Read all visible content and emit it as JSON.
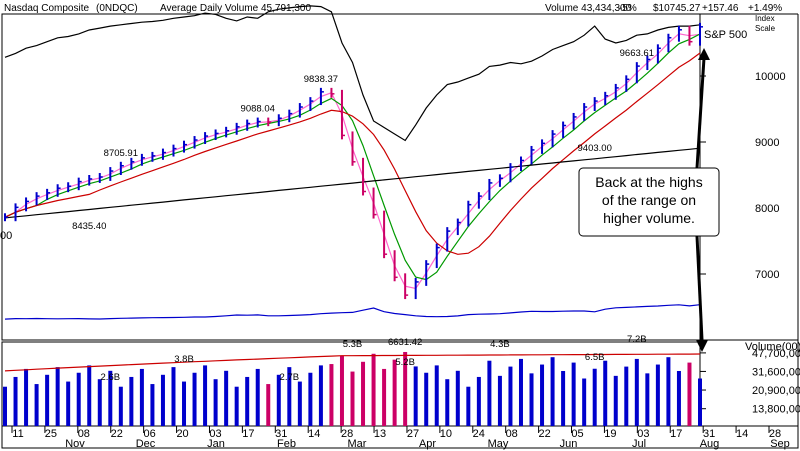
{
  "header": {
    "index_name": "Nasdaq Composite",
    "symbol": "(0NDQC)",
    "avg_volume": "Average Daily Volume 45,791,300",
    "volume": "Volume 43,434,300",
    "volume_change": "-5%",
    "price": "$10745.27",
    "change": "+157.46",
    "change_pct": "+1.49%",
    "index_label": "Index",
    "scale_label": "Scale"
  },
  "colors": {
    "up": "#0000cc",
    "down": "#cc0066",
    "ma10": "#ff66cc",
    "ma21": "#009900",
    "ma50": "#cc0000",
    "ma200": "#000000",
    "rs_line": "#0000cc",
    "sp500": "#000000",
    "volume_avg": "#cc0000",
    "red_text": "#cc0000",
    "blue_text": "#0000cc"
  },
  "chart_data": {
    "type": "line",
    "price_ticks": [
      "10000",
      "9000",
      "8000",
      "7000"
    ],
    "price_tick_values": [
      10000,
      9000,
      8000,
      7000
    ],
    "cut_label": "00",
    "volume_label": "Volume(00)",
    "volume_ticks": [
      "47,700,000",
      "31,600,000",
      "20,900,000",
      "13,800,000"
    ],
    "volume_tick_values": [
      47700000,
      31600000,
      20900000,
      13800000
    ],
    "x_ticks": [
      "11",
      "25",
      "08",
      "22",
      "06",
      "20",
      "03",
      "17",
      "31",
      "14",
      "28",
      "13",
      "27",
      "10",
      "24",
      "08",
      "22",
      "05",
      "19",
      "03",
      "17",
      "31",
      "14",
      "28"
    ],
    "month_labels": [
      "Nov",
      "Dec",
      "Jan",
      "Feb",
      "Mar",
      "Apr",
      "May",
      "Jun",
      "Jul",
      "Aug",
      "Sep"
    ],
    "sp500_label": "S&P 500",
    "price_annotations": [
      "9838.37",
      "8705.91",
      "9088.04",
      "8435.40",
      "6631.42",
      "9403.00",
      "9663.61"
    ],
    "volume_annotations": [
      "2.6B",
      "3.8B",
      "2.7B",
      "5.3B",
      "5.2B",
      "4.3B",
      "6.5B",
      "7.2B"
    ],
    "callout": [
      "Back at the highs",
      "of the range on",
      "higher volume."
    ],
    "series": [
      {
        "name": "Nasdaq Composite",
        "values": [
          7860,
          8010,
          8100,
          8180,
          8230,
          8300,
          8330,
          8400,
          8440,
          8470,
          8560,
          8640,
          8700,
          8760,
          8790,
          8840,
          8900,
          8960,
          9030,
          9090,
          9130,
          9170,
          9230,
          9280,
          9310,
          9300,
          9360,
          9430,
          9530,
          9620,
          9760,
          9730,
          9100,
          8700,
          8250,
          7900,
          7300,
          6950,
          6680,
          6880,
          7150,
          7400,
          7650,
          7780,
          8050,
          8180,
          8380,
          8450,
          8620,
          8720,
          8880,
          8980,
          9120,
          9250,
          9380,
          9530,
          9620,
          9700,
          9820,
          9950,
          10150,
          10250,
          10420,
          10580,
          10700,
          10520,
          10745
        ]
      },
      {
        "name": "S&P 500",
        "values": [
          2990,
          3020,
          3060,
          3080,
          3110,
          3140,
          3150,
          3170,
          3200,
          3215,
          3230,
          3240,
          3250,
          3260,
          3265,
          3275,
          3290,
          3300,
          3310,
          3330,
          3320,
          3290,
          3270,
          3300,
          3290,
          3340,
          3360,
          3370,
          3380,
          3385,
          3380,
          3340,
          3100,
          2950,
          2700,
          2500,
          2450,
          2400,
          2350,
          2470,
          2600,
          2700,
          2780,
          2800,
          2830,
          2860,
          2920,
          2930,
          2950,
          2940,
          2960,
          3000,
          3050,
          3080,
          3110,
          3160,
          3230,
          3130,
          3100,
          3120,
          3160,
          3170,
          3200,
          3220,
          3230,
          3230,
          3240
        ]
      }
    ]
  }
}
